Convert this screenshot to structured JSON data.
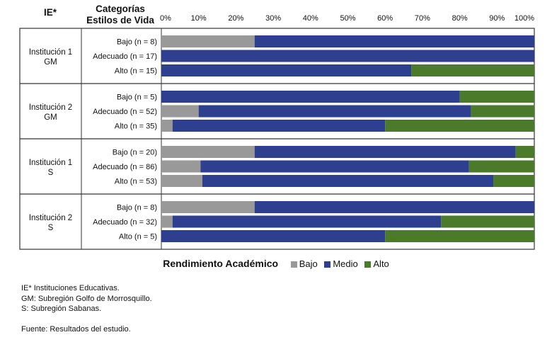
{
  "colors": {
    "bajo": "#999999",
    "medio": "#2e3f8f",
    "alto": "#4a7a2a",
    "border": "#333333"
  },
  "chart_data": {
    "type": "bar",
    "orientation": "horizontal",
    "stacked": true,
    "header_ie": "IE*",
    "header_categories": [
      "Categorías",
      "Estilos de Vida"
    ],
    "x_ticks": [
      "0%",
      "10%",
      "20%",
      "30%",
      "40%",
      "50%",
      "60%",
      "70%",
      "80%",
      "90%",
      "100%"
    ],
    "xlim": [
      0,
      100
    ],
    "legend_title": "Rendimiento Académico",
    "legend_position": "bottom",
    "series_names": [
      "Bajo",
      "Medio",
      "Alto"
    ],
    "groups": [
      {
        "label": [
          "Institución 1",
          "GM"
        ],
        "rows": [
          {
            "category": "Bajo (n = 8)",
            "bajo": 25,
            "medio": 75,
            "alto": 0
          },
          {
            "category": "Adecuado (n = 17)",
            "bajo": 0,
            "medio": 100,
            "alto": 0
          },
          {
            "category": "Alto (n = 15)",
            "bajo": 0,
            "medio": 67,
            "alto": 33
          }
        ]
      },
      {
        "label": [
          "Institución 2",
          "GM"
        ],
        "rows": [
          {
            "category": "Bajo (n = 5)",
            "bajo": 0,
            "medio": 80,
            "alto": 20
          },
          {
            "category": "Adecuado (n = 52)",
            "bajo": 10,
            "medio": 73,
            "alto": 17
          },
          {
            "category": "Alto (n = 35)",
            "bajo": 3,
            "medio": 57,
            "alto": 40
          }
        ]
      },
      {
        "label": [
          "Institución 1",
          "S"
        ],
        "rows": [
          {
            "category": "Bajo (n = 20)",
            "bajo": 25,
            "medio": 70,
            "alto": 5
          },
          {
            "category": "Adecuado (n = 86)",
            "bajo": 10.5,
            "medio": 72,
            "alto": 17.5
          },
          {
            "category": "Alto (n = 53)",
            "bajo": 11,
            "medio": 78,
            "alto": 11
          }
        ]
      },
      {
        "label": [
          "Institución 2",
          "S"
        ],
        "rows": [
          {
            "category": "Bajo (n = 8)",
            "bajo": 25,
            "medio": 75,
            "alto": 0
          },
          {
            "category": "Adecuado (n = 32)",
            "bajo": 3,
            "medio": 72,
            "alto": 25
          },
          {
            "category": "Alto (n = 5)",
            "bajo": 0,
            "medio": 60,
            "alto": 40
          }
        ]
      }
    ]
  },
  "notes": {
    "ie": "IE* Instituciones Educativas.",
    "gm": "GM: Subregión Golfo de Morrosquillo.",
    "s": "S: Subregión Sabanas.",
    "source": "Fuente: Resultados del estudio."
  }
}
